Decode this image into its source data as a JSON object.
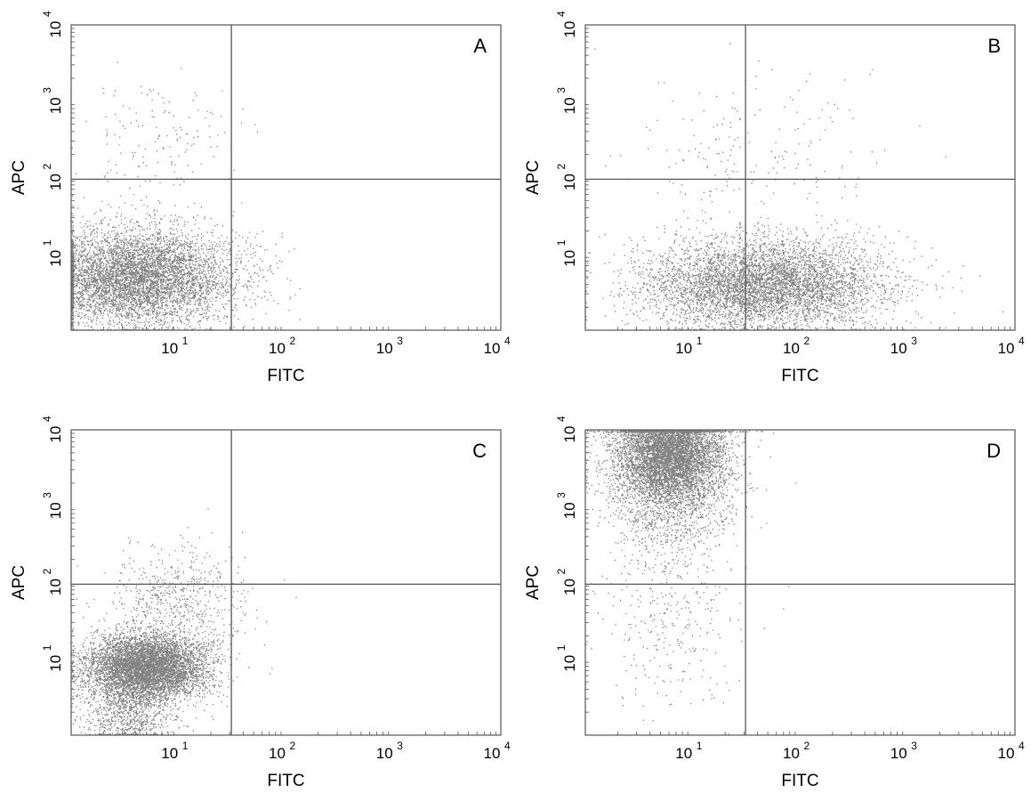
{
  "axis_color": "#555555",
  "point_color": "#1a1a1a",
  "chart_data": [
    {
      "type": "scatter",
      "panel_label": "A",
      "xlabel": "FITC",
      "ylabel": "APC",
      "xscale": "log",
      "yscale": "log",
      "xlim": [
        1,
        10000
      ],
      "ylim": [
        1,
        10000
      ],
      "x_tick_labels": [
        "10^1",
        "10^2",
        "10^3",
        "10^4"
      ],
      "y_tick_labels": [
        "10^1",
        "10^2",
        "10^3",
        "10^4"
      ],
      "quadrant_gate": {
        "x": 31,
        "y": 95
      },
      "populations": [
        {
          "center_x": 4,
          "center_y": 5,
          "spread_x": 0.45,
          "spread_y": 0.32,
          "count": 6000
        },
        {
          "center_x": 6,
          "center_y": 300,
          "spread_x": 0.35,
          "spread_y": 0.45,
          "count": 160
        }
      ]
    },
    {
      "type": "scatter",
      "panel_label": "B",
      "xlabel": "FITC",
      "ylabel": "APC",
      "xscale": "log",
      "yscale": "log",
      "xlim": [
        1,
        10000
      ],
      "ylim": [
        1,
        10000
      ],
      "x_tick_labels": [
        "10^1",
        "10^2",
        "10^3",
        "10^4"
      ],
      "y_tick_labels": [
        "10^1",
        "10^2",
        "10^3",
        "10^4"
      ],
      "quadrant_gate": {
        "x": 31,
        "y": 95
      },
      "populations": [
        {
          "center_x": 45,
          "center_y": 4,
          "spread_x": 0.55,
          "spread_y": 0.3,
          "count": 5500
        },
        {
          "center_x": 30,
          "center_y": 200,
          "spread_x": 0.6,
          "spread_y": 0.5,
          "count": 200
        }
      ]
    },
    {
      "type": "scatter",
      "panel_label": "C",
      "xlabel": "FITC",
      "ylabel": "APC",
      "xscale": "log",
      "yscale": "log",
      "xlim": [
        1,
        10000
      ],
      "ylim": [
        1,
        10000
      ],
      "x_tick_labels": [
        "10^1",
        "10^2",
        "10^3",
        "10^4"
      ],
      "y_tick_labels": [
        "10^1",
        "10^2",
        "10^3",
        "10^4"
      ],
      "quadrant_gate": {
        "x": 31,
        "y": 95
      },
      "populations": [
        {
          "center_x": 5,
          "center_y": 8,
          "spread_x": 0.28,
          "spread_y": 0.22,
          "count": 6000
        },
        {
          "center_x": 3.5,
          "center_y": 2,
          "spread_x": 0.2,
          "spread_y": 0.25,
          "count": 900
        },
        {
          "center_x": 10,
          "center_y": 60,
          "spread_x": 0.3,
          "spread_y": 0.35,
          "count": 600
        }
      ]
    },
    {
      "type": "scatter",
      "panel_label": "D",
      "xlabel": "FITC",
      "ylabel": "APC",
      "xscale": "log",
      "yscale": "log",
      "xlim": [
        1,
        10000
      ],
      "ylim": [
        1,
        10000
      ],
      "x_tick_labels": [
        "10^1",
        "10^2",
        "10^3",
        "10^4"
      ],
      "y_tick_labels": [
        "10^1",
        "10^2",
        "10^3",
        "10^4"
      ],
      "quadrant_gate": {
        "x": 31,
        "y": 95
      },
      "populations": [
        {
          "center_x": 6,
          "center_y": 5000,
          "spread_x": 0.25,
          "spread_y": 0.3,
          "count": 6000
        },
        {
          "center_x": 6,
          "center_y": 1200,
          "spread_x": 0.3,
          "spread_y": 0.35,
          "count": 1200
        },
        {
          "center_x": 6,
          "center_y": 40,
          "spread_x": 0.3,
          "spread_y": 0.6,
          "count": 350
        }
      ]
    }
  ]
}
